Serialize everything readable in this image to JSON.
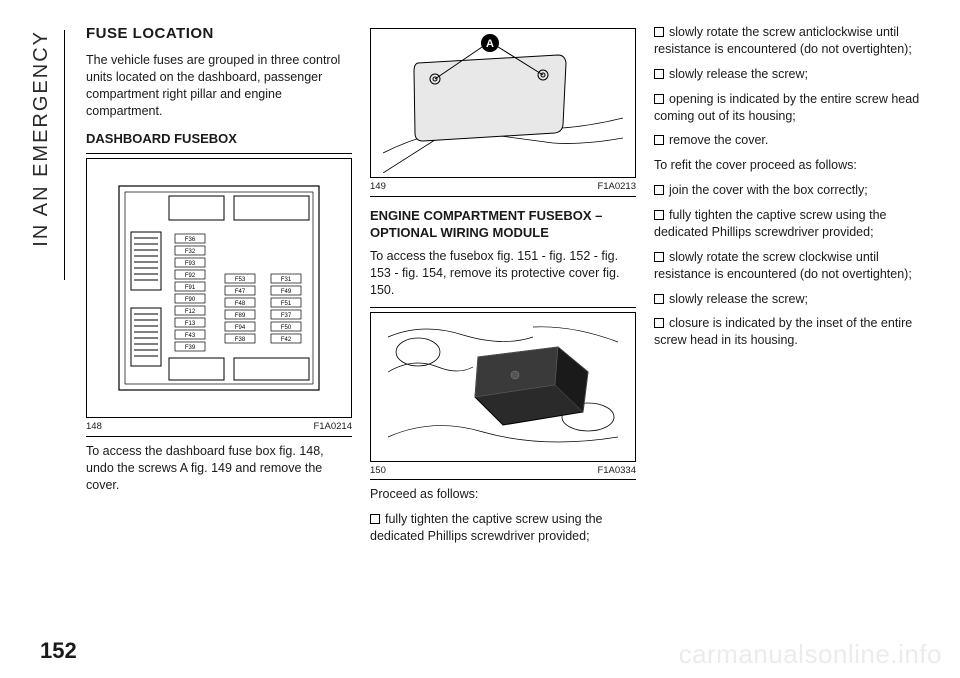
{
  "sideTab": "IN AN EMERGENCY",
  "pageNumber": "152",
  "watermark": "carmanualsonline.info",
  "col1": {
    "heading": "FUSE LOCATION",
    "intro": "The vehicle fuses are grouped in three control units located on the dashboard, passenger compartment right pillar and engine compartment.",
    "sub": "DASHBOARD FUSEBOX",
    "figNum": "148",
    "figCode": "F1A0214",
    "after": "To access the dashboard fuse box fig. 148, undo the screws A fig. 149 and remove the cover.",
    "fuseLabels": [
      "F36",
      "F32",
      "F93",
      "F92",
      "F91",
      "F90",
      "F12",
      "F13",
      "F43",
      "F39",
      "F53",
      "F47",
      "F48",
      "F89",
      "F94",
      "F38",
      "F31",
      "F49",
      "F51",
      "F37",
      "F50",
      "F42"
    ]
  },
  "col2": {
    "figNum1": "149",
    "figCode1": "F1A0213",
    "callout": "A",
    "sub": "ENGINE COMPARTMENT FUSEBOX – OPTIONAL WIRING MODULE",
    "para1": "To access the fusebox fig. 151 - fig. 152 - fig. 153 - fig. 154, remove its protective cover fig. 150.",
    "figNum2": "150",
    "figCode2": "F1A0334",
    "para2": "Proceed as follows:",
    "bullet1": "fully tighten the captive screw using the dedicated Phillips screwdriver provided;"
  },
  "col3": {
    "bullets": [
      "slowly rotate the screw anticlockwise until resistance is encountered (do not overtighten);",
      "slowly release the screw;",
      "opening is indicated by the entire screw head coming out of its housing;",
      "remove the cover."
    ],
    "mid": "To refit the cover proceed as follows:",
    "bullets2": [
      "join the cover with the box correctly;",
      "fully tighten the captive screw using the dedicated Phillips screwdriver provided;",
      "slowly rotate the screw clockwise until resistance is encountered (do not overtighten);",
      "slowly release the screw;",
      "closure is indicated by the inset of the entire screw head in its housing."
    ]
  }
}
